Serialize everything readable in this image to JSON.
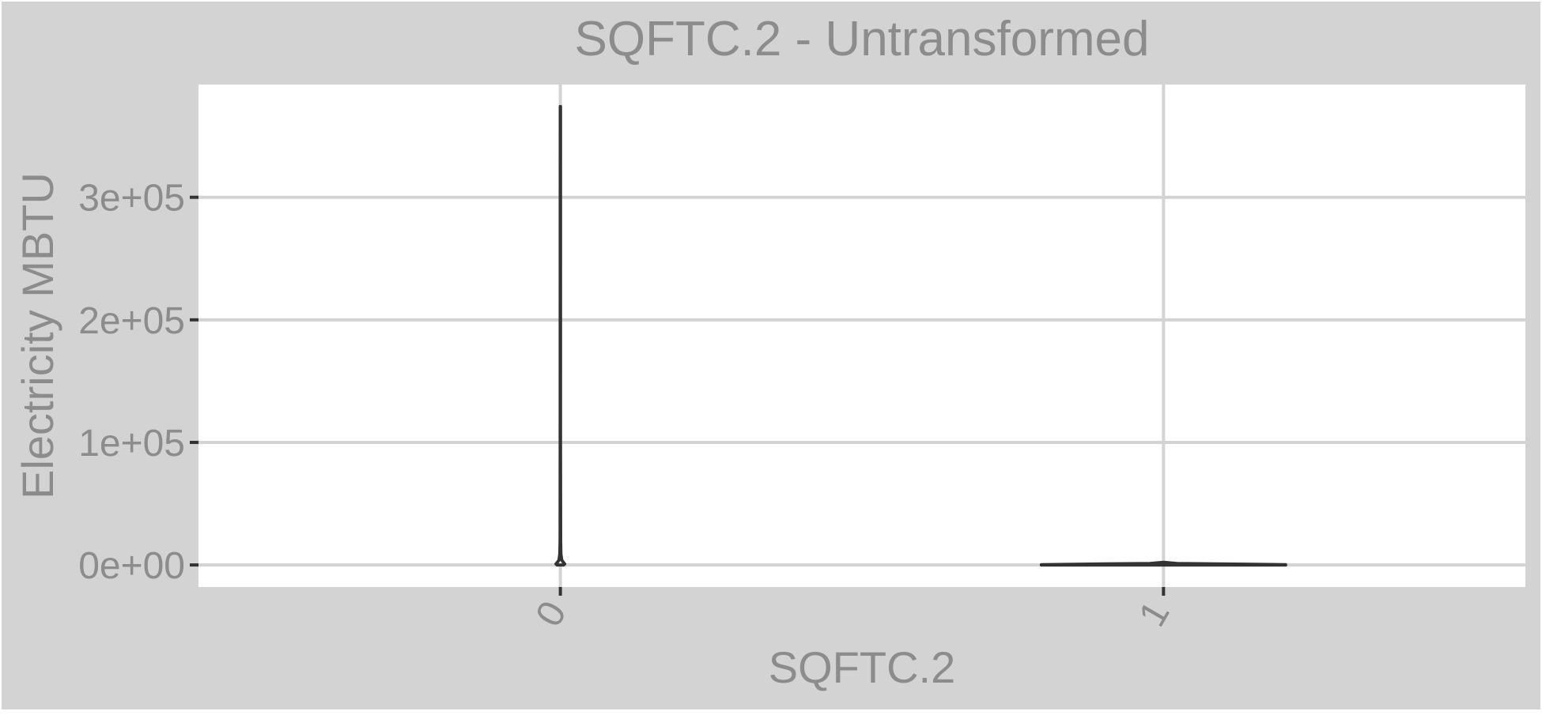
{
  "chart_data": {
    "type": "violin",
    "title": "SQFTC.2 - Untransformed",
    "xlabel": "SQFTC.2",
    "ylabel": "Electricity MBTU",
    "categories": [
      "0",
      "1"
    ],
    "ylim": [
      -18000,
      392000
    ],
    "yticks": [
      {
        "value": 0,
        "label": "0e+00"
      },
      {
        "value": 100000,
        "label": "1e+05"
      },
      {
        "value": 200000,
        "label": "2e+05"
      },
      {
        "value": 300000,
        "label": "3e+05"
      }
    ],
    "series": [
      {
        "name": "0",
        "min": 0,
        "max": 374000,
        "density": [
          {
            "y": 0,
            "w": 0.012
          },
          {
            "y": 800,
            "w": 0.016
          },
          {
            "y": 1800,
            "w": 0.012
          },
          {
            "y": 4000,
            "w": 0.005
          },
          {
            "y": 9000,
            "w": 0.002
          },
          {
            "y": 20000,
            "w": 0.001
          },
          {
            "y": 100000,
            "w": 0.0006
          },
          {
            "y": 374000,
            "w": 0.0004
          }
        ]
      },
      {
        "name": "1",
        "min": 0,
        "max": 2200,
        "density": [
          {
            "y": 0,
            "w": 0.45
          },
          {
            "y": 200,
            "w": 0.45
          },
          {
            "y": 600,
            "w": 0.3
          },
          {
            "y": 1200,
            "w": 0.05
          },
          {
            "y": 2200,
            "w": 0.0005
          }
        ]
      }
    ],
    "colors": {
      "outer_background": "#D3D3D3",
      "panel_background": "#FFFFFF",
      "grid": "#D3D3D3",
      "text": "#8C8C8C",
      "violin_stroke": "#333333"
    }
  }
}
